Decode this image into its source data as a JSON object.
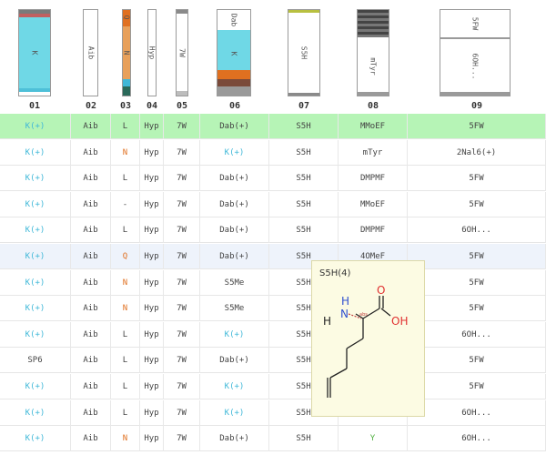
{
  "columns": [
    {
      "num": "01",
      "bar_label": "K"
    },
    {
      "num": "02",
      "bar_label": "Aib"
    },
    {
      "num": "03",
      "bar_label_top": "Q",
      "bar_label_mid": "N"
    },
    {
      "num": "04",
      "bar_label": "Hyp"
    },
    {
      "num": "05",
      "bar_label": "7W"
    },
    {
      "num": "06",
      "bar_label_top": "Dab",
      "bar_label_mid": "K"
    },
    {
      "num": "07",
      "bar_label": "S5H"
    },
    {
      "num": "08",
      "bar_label": "mTyr"
    },
    {
      "num": "09",
      "bar_label_top": "5FW",
      "bar_label_mid": "6OH..."
    }
  ],
  "rows": [
    [
      "K(+)",
      "Aib",
      "L",
      "Hyp",
      "7W",
      "Dab(+)",
      "S5H",
      "MMoEF",
      "5FW"
    ],
    [
      "K(+)",
      "Aib",
      "N",
      "Hyp",
      "7W",
      "K(+)",
      "S5H",
      "mTyr",
      "2Nal6(+)"
    ],
    [
      "K(+)",
      "Aib",
      "L",
      "Hyp",
      "7W",
      "Dab(+)",
      "S5H",
      "DMPMF",
      "5FW"
    ],
    [
      "K(+)",
      "Aib",
      "-",
      "Hyp",
      "7W",
      "Dab(+)",
      "S5H",
      "MMoEF",
      "5FW"
    ],
    [
      "K(+)",
      "Aib",
      "L",
      "Hyp",
      "7W",
      "Dab(+)",
      "S5H",
      "DMPMF",
      "6OH..."
    ],
    [
      "K(+)",
      "Aib",
      "Q",
      "Hyp",
      "7W",
      "Dab(+)",
      "S5H",
      "4OMeF",
      "5FW"
    ],
    [
      "K(+)",
      "Aib",
      "N",
      "Hyp",
      "7W",
      "S5Me",
      "S5H",
      "",
      "5FW"
    ],
    [
      "K(+)",
      "Aib",
      "N",
      "Hyp",
      "7W",
      "S5Me",
      "S5H",
      "",
      "5FW"
    ],
    [
      "K(+)",
      "Aib",
      "L",
      "Hyp",
      "7W",
      "K(+)",
      "S5H",
      "",
      "6OH..."
    ],
    [
      "SP6",
      "Aib",
      "L",
      "Hyp",
      "7W",
      "Dab(+)",
      "S5H",
      "",
      "5FW"
    ],
    [
      "K(+)",
      "Aib",
      "L",
      "Hyp",
      "7W",
      "K(+)",
      "S5H",
      "",
      "5FW"
    ],
    [
      "K(+)",
      "Aib",
      "L",
      "Hyp",
      "7W",
      "K(+)",
      "S5H",
      "",
      "6OH..."
    ],
    [
      "K(+)",
      "Aib",
      "N",
      "Hyp",
      "7W",
      "Dab(+)",
      "S5H",
      "Y",
      "6OH..."
    ]
  ],
  "tooltip": {
    "title": "S5H(4)",
    "atom_h": "H",
    "atom_n_h": "H",
    "atom_n": "N",
    "atom_o": "O",
    "atom_oh": "OH",
    "stereo_label": "abs"
  },
  "colors": {
    "k_blue": "#40b8d8",
    "orange": "#e07020",
    "green_y": "#50b040",
    "row_highlight": "#b6f4b6",
    "tooltip_bg": "#fcfbe3"
  }
}
